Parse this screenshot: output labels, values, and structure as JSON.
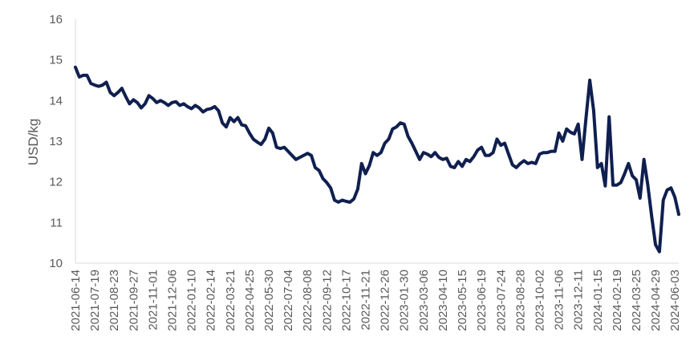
{
  "chart_data": {
    "type": "line",
    "title": "",
    "xlabel": "",
    "ylabel": "USD/kg",
    "ylim": [
      10,
      16
    ],
    "yticks": [
      10,
      11,
      12,
      13,
      14,
      15,
      16
    ],
    "x_start": "2021-06-14",
    "x_end": "2024-06-10",
    "x_tick_labels": [
      "2021-06-14",
      "2021-07-19",
      "2021-08-23",
      "2021-09-27",
      "2021-11-01",
      "2021-12-06",
      "2022-01-10",
      "2022-02-14",
      "2022-03-21",
      "2022-04-25",
      "2022-05-30",
      "2022-07-04",
      "2022-08-08",
      "2022-09-12",
      "2022-10-17",
      "2022-11-21",
      "2022-12-26",
      "2023-01-30",
      "2023-03-06",
      "2023-04-10",
      "2023-05-15",
      "2023-06-19",
      "2023-07-24",
      "2023-08-28",
      "2023-10-02",
      "2023-11-06",
      "2023-12-11",
      "2024-01-15",
      "2024-02-19",
      "2024-03-25",
      "2024-04-29",
      "2024-06-03"
    ],
    "grid": false,
    "legend": "none",
    "line_color": "#0f1f4f",
    "series": [
      {
        "values": [
          14.82,
          14.58,
          14.62,
          14.62,
          14.42,
          14.38,
          14.35,
          14.38,
          14.45,
          14.2,
          14.12,
          14.2,
          14.3,
          14.1,
          13.92,
          14.02,
          13.95,
          13.82,
          13.92,
          14.12,
          14.05,
          13.95,
          14.0,
          13.95,
          13.88,
          13.95,
          13.97,
          13.88,
          13.92,
          13.85,
          13.8,
          13.88,
          13.82,
          13.72,
          13.78,
          13.8,
          13.85,
          13.75,
          13.45,
          13.35,
          13.58,
          13.48,
          13.58,
          13.4,
          13.38,
          13.2,
          13.05,
          12.98,
          12.92,
          13.05,
          13.32,
          13.2,
          12.85,
          12.82,
          12.85,
          12.75,
          12.65,
          12.55,
          12.6,
          12.65,
          12.7,
          12.65,
          12.35,
          12.28,
          12.08,
          11.98,
          11.85,
          11.55,
          11.5,
          11.55,
          11.52,
          11.5,
          11.58,
          11.82,
          12.45,
          12.2,
          12.4,
          12.72,
          12.65,
          12.72,
          12.95,
          13.05,
          13.3,
          13.35,
          13.45,
          13.42,
          13.12,
          12.95,
          12.75,
          12.55,
          12.72,
          12.68,
          12.62,
          12.72,
          12.6,
          12.55,
          12.58,
          12.38,
          12.35,
          12.5,
          12.38,
          12.55,
          12.5,
          12.62,
          12.78,
          12.85,
          12.65,
          12.65,
          12.72,
          13.05,
          12.9,
          12.95,
          12.68,
          12.42,
          12.35,
          12.45,
          12.52,
          12.45,
          12.48,
          12.45,
          12.68,
          12.72,
          12.72,
          12.75,
          12.75,
          13.2,
          13.0,
          13.3,
          13.22,
          13.18,
          13.42,
          12.55,
          13.55,
          14.5,
          13.75,
          12.35,
          12.45,
          11.9,
          13.6,
          11.92,
          11.92,
          11.98,
          12.2,
          12.45,
          12.15,
          12.05,
          11.6,
          12.55,
          11.92,
          11.15,
          10.45,
          10.28,
          11.55,
          11.8,
          11.85,
          11.62,
          11.2
        ]
      }
    ]
  }
}
